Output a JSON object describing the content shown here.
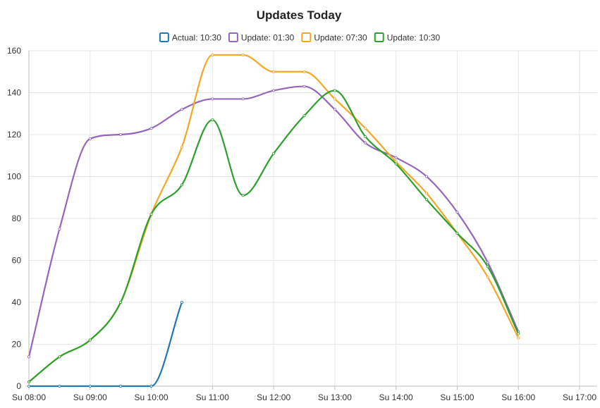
{
  "chart_data": {
    "type": "line",
    "title": "Updates Today",
    "xlabel": "",
    "ylabel": "",
    "x_ticks": [
      "Su 08:00",
      "Su 09:00",
      "Su 10:00",
      "Su 11:00",
      "Su 12:00",
      "Su 13:00",
      "Su 14:00",
      "Su 15:00",
      "Su 16:00",
      "Su 17:00"
    ],
    "x_range_hours": [
      8,
      17
    ],
    "ylim": [
      0,
      160
    ],
    "y_ticks": [
      0,
      20,
      40,
      60,
      80,
      100,
      120,
      140,
      160
    ],
    "grid": true,
    "legend_position": "top",
    "series": [
      {
        "name": "Actual: 10:30",
        "color": "#1f77b4",
        "points": [
          [
            "08:00",
            0
          ],
          [
            "08:30",
            0
          ],
          [
            "09:00",
            0
          ],
          [
            "09:30",
            0
          ],
          [
            "10:00",
            0
          ],
          [
            "10:30",
            40
          ]
        ]
      },
      {
        "name": "Update: 01:30",
        "color": "#9467bd",
        "points": [
          [
            "08:00",
            14
          ],
          [
            "08:30",
            75
          ],
          [
            "09:00",
            118
          ],
          [
            "09:30",
            120
          ],
          [
            "10:00",
            123
          ],
          [
            "10:30",
            132
          ],
          [
            "11:00",
            137
          ],
          [
            "11:30",
            137
          ],
          [
            "12:00",
            141
          ],
          [
            "12:30",
            143
          ],
          [
            "13:00",
            132
          ],
          [
            "13:30",
            116
          ],
          [
            "14:00",
            109
          ],
          [
            "14:30",
            100
          ],
          [
            "15:00",
            83
          ],
          [
            "15:30",
            59
          ],
          [
            "16:00",
            26
          ]
        ]
      },
      {
        "name": "Update: 07:30",
        "color": "#f5a623",
        "points": [
          [
            "08:00",
            2
          ],
          [
            "08:30",
            14
          ],
          [
            "09:00",
            22
          ],
          [
            "09:30",
            40
          ],
          [
            "10:00",
            82
          ],
          [
            "10:30",
            114
          ],
          [
            "11:00",
            158
          ],
          [
            "11:30",
            158
          ],
          [
            "12:00",
            150
          ],
          [
            "12:30",
            150
          ],
          [
            "13:00",
            137
          ],
          [
            "13:30",
            123
          ],
          [
            "14:00",
            107
          ],
          [
            "14:30",
            92
          ],
          [
            "15:00",
            73
          ],
          [
            "15:30",
            52
          ],
          [
            "16:00",
            23
          ]
        ]
      },
      {
        "name": "Update: 10:30",
        "color": "#2ca02c",
        "points": [
          [
            "08:00",
            2
          ],
          [
            "08:30",
            14
          ],
          [
            "09:00",
            22
          ],
          [
            "09:30",
            40
          ],
          [
            "10:00",
            82
          ],
          [
            "10:30",
            96
          ],
          [
            "11:00",
            127
          ],
          [
            "11:30",
            91
          ],
          [
            "12:00",
            111
          ],
          [
            "12:30",
            129
          ],
          [
            "13:00",
            141
          ],
          [
            "13:30",
            119
          ],
          [
            "14:00",
            106
          ],
          [
            "14:30",
            89
          ],
          [
            "15:00",
            73
          ],
          [
            "15:30",
            57
          ],
          [
            "16:00",
            25
          ]
        ]
      }
    ]
  }
}
